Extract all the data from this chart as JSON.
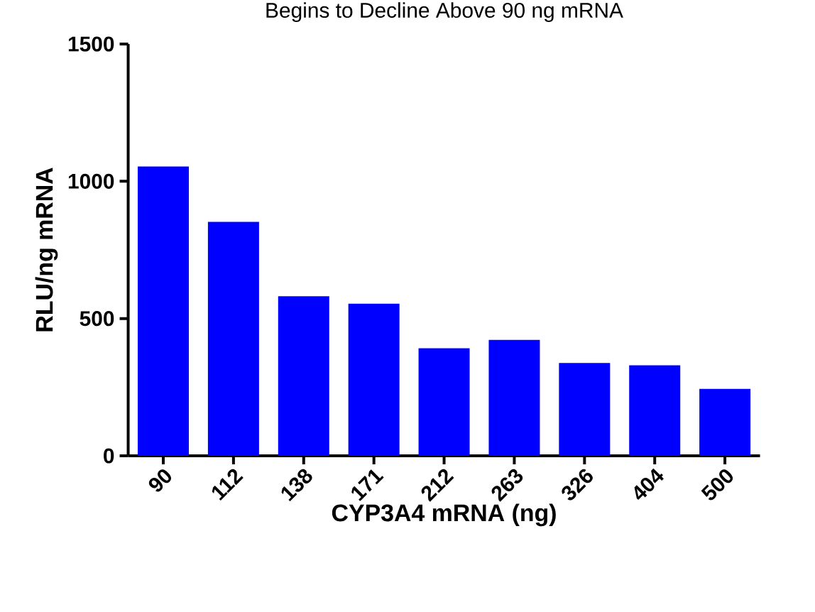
{
  "chart_data": {
    "type": "bar",
    "title": "Begins to Decline Above 90 ng mRNA",
    "xlabel": "CYP3A4 mRNA (ng)",
    "ylabel": "RLU/ng mRNA",
    "categories": [
      "90",
      "112",
      "138",
      "171",
      "212",
      "263",
      "326",
      "404",
      "500"
    ],
    "values": [
      1054,
      852,
      581,
      554,
      392,
      422,
      338,
      330,
      244
    ],
    "color": "#0000ff",
    "ylim": [
      0,
      1500
    ],
    "yticks": [
      0,
      500,
      1000,
      1500
    ],
    "grid": false
  }
}
